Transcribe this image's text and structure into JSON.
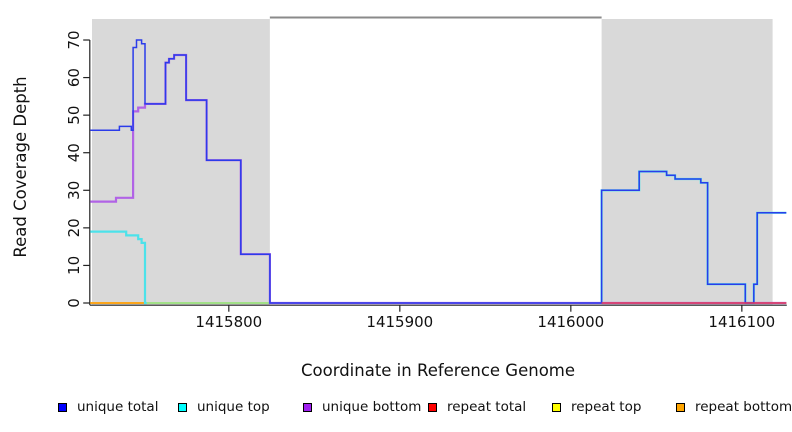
{
  "chart_data": {
    "type": "line",
    "subtype": "step-coverage",
    "title": "",
    "xlabel": "Coordinate in Reference Genome",
    "ylabel": "Read Coverage Depth",
    "xlim": [
      1415719,
      1416126
    ],
    "ylim": [
      0,
      75.8
    ],
    "x_ticks": [
      1415800,
      1415900,
      1416000,
      1416100
    ],
    "y_ticks": [
      0,
      10,
      20,
      30,
      40,
      50,
      60,
      70
    ],
    "grid": false,
    "legend_position": "bottom",
    "background_color": "#ffffff",
    "shaded_regions": [
      {
        "name": "left-shaded-region",
        "x1": 1415720,
        "x2": 1415824,
        "color": "#d9d9d9"
      },
      {
        "name": "right-shaded-region",
        "x1": 1416018,
        "x2": 1416118,
        "color": "#d9d9d9"
      }
    ],
    "gap_marker": {
      "name": "top-gap-line",
      "x1": 1415824,
      "x2": 1416018,
      "color": "#8a8a8a"
    },
    "series": [
      {
        "name": "repeat top",
        "key": "repeat-top",
        "color": "#f0f000",
        "width": 1.4,
        "segments": [
          [
            [
              1415719,
              0
            ],
            [
              1416126,
              0
            ]
          ]
        ]
      },
      {
        "name": "repeat bottom",
        "key": "repeat-bottom",
        "color": "#ff9d12",
        "width": 1.7,
        "segments": [
          [
            [
              1415719,
              0
            ],
            [
              1416126,
              0
            ]
          ]
        ]
      },
      {
        "name": "baseline overlap (green)",
        "key": "overlap-baseline",
        "color": "#96e896",
        "width": 1.7,
        "segments": [
          [
            [
              1415751,
              0
            ],
            [
              1415824,
              0
            ]
          ]
        ]
      },
      {
        "name": "unique top",
        "key": "unique-top",
        "color": "#4ce2ea",
        "width": 2.2,
        "segments": [
          [
            [
              1415719,
              19
            ],
            [
              1415740,
              18
            ],
            [
              1415747,
              17
            ],
            [
              1415749,
              16
            ],
            [
              1415751,
              0
            ],
            [
              1415752,
              0
            ]
          ],
          [
            [
              1416018,
              0
            ],
            [
              1416018,
              30
            ],
            [
              1416040,
              35
            ],
            [
              1416056,
              34
            ],
            [
              1416061,
              33
            ],
            [
              1416076,
              32
            ],
            [
              1416080,
              5
            ],
            [
              1416102,
              0
            ],
            [
              1416107,
              5
            ],
            [
              1416109,
              24
            ],
            [
              1416126,
              24
            ]
          ]
        ]
      },
      {
        "name": "unique bottom",
        "key": "unique-bottom",
        "color": "#b163e6",
        "width": 2.2,
        "segments": [
          [
            [
              1415719,
              27
            ],
            [
              1415734,
              28
            ],
            [
              1415744,
              51
            ],
            [
              1415747,
              52
            ],
            [
              1415751,
              53
            ],
            [
              1415763,
              64
            ],
            [
              1415765,
              65
            ],
            [
              1415768,
              66
            ],
            [
              1415775,
              54
            ],
            [
              1415787,
              38
            ],
            [
              1415807,
              13
            ],
            [
              1415824,
              0
            ],
            [
              1416126,
              0
            ]
          ]
        ]
      },
      {
        "name": "unique total",
        "key": "unique-total",
        "color": "#2b3cea",
        "width": 1.5,
        "segments": [
          [
            [
              1415719,
              46
            ],
            [
              1415736,
              47
            ],
            [
              1415743,
              46
            ],
            [
              1415744,
              68
            ],
            [
              1415746,
              70
            ],
            [
              1415749,
              69
            ],
            [
              1415751,
              53
            ],
            [
              1415763,
              64
            ],
            [
              1415765,
              65
            ],
            [
              1415768,
              66
            ],
            [
              1415775,
              54
            ],
            [
              1415787,
              38
            ],
            [
              1415807,
              13
            ],
            [
              1415824,
              0
            ],
            [
              1416018,
              30
            ],
            [
              1416040,
              35
            ],
            [
              1416056,
              34
            ],
            [
              1416061,
              33
            ],
            [
              1416076,
              32
            ],
            [
              1416080,
              5
            ],
            [
              1416102,
              0
            ],
            [
              1416107,
              5
            ],
            [
              1416109,
              24
            ],
            [
              1416126,
              24
            ]
          ]
        ]
      },
      {
        "name": "repeat total",
        "key": "repeat-total",
        "color": "#e23c55",
        "width": 1.5,
        "segments": [
          [
            [
              1416018,
              0
            ],
            [
              1416126,
              0
            ]
          ]
        ]
      }
    ],
    "legend": [
      {
        "label": "unique total",
        "color": "#0000ff"
      },
      {
        "label": "unique top",
        "color": "#00ffff"
      },
      {
        "label": "unique bottom",
        "color": "#a020f0"
      },
      {
        "label": "repeat total",
        "color": "#ff0000"
      },
      {
        "label": "repeat top",
        "color": "#ffff00"
      },
      {
        "label": "repeat bottom",
        "color": "#ffa500"
      }
    ]
  }
}
